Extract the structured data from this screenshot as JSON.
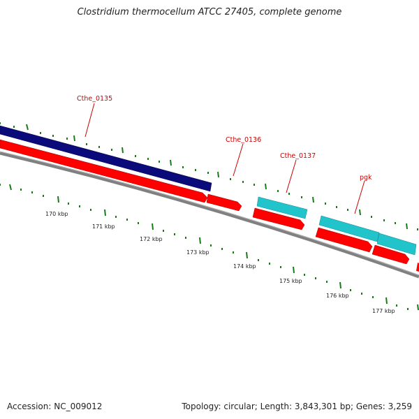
{
  "title": "Clostridium thermocellum ATCC 27405, complete genome",
  "footer": {
    "accession": "Accession: NC_009012",
    "summary": "Topology: circular; Length: 3,843,301 bp; Genes: 3,259"
  },
  "genes": [
    {
      "label": "Cthe_0135",
      "feature_color": "#0a0a7a",
      "cds_color": "#ff0000"
    },
    {
      "label": "Cthe_0136",
      "feature_color": null,
      "cds_color": "#ff0000"
    },
    {
      "label": "Cthe_0137",
      "feature_color": "#22c4cc",
      "cds_color": "#ff0000"
    },
    {
      "label": "pgk",
      "feature_color": "#22c4cc",
      "cds_color": "#ff0000"
    }
  ],
  "scale_labels": [
    "170 kbp",
    "171 kbp",
    "172 kbp",
    "173 kbp",
    "174 kbp",
    "175 kbp",
    "176 kbp",
    "177 kbp"
  ],
  "colors": {
    "backbone": "#808080",
    "label_text": "#cc0000",
    "tick": "#1a7a1a"
  }
}
